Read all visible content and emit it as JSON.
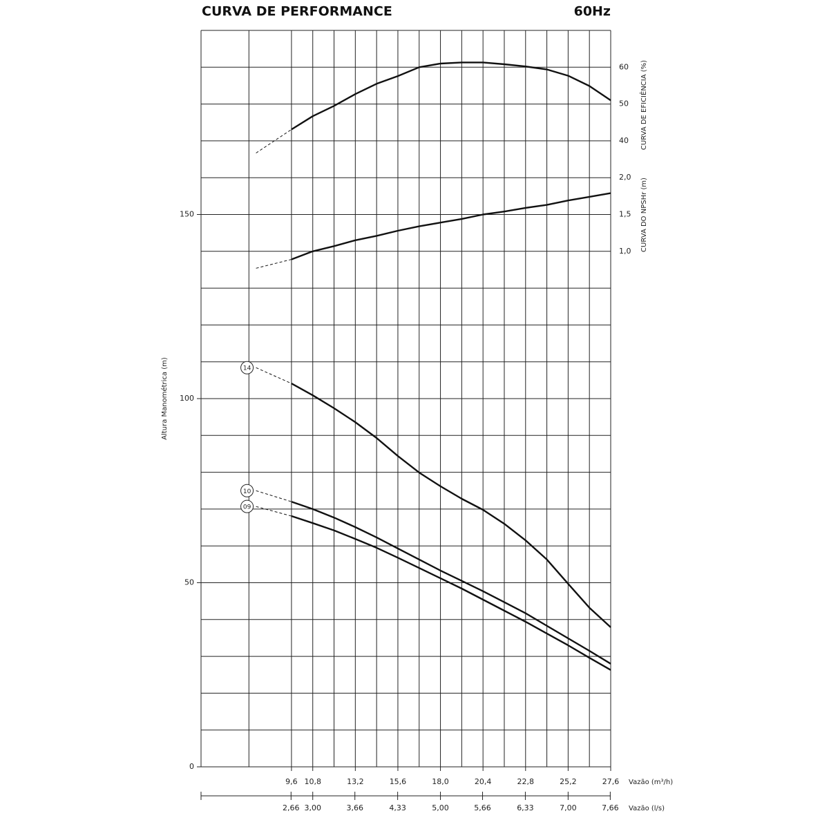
{
  "chart_data": {
    "type": "line",
    "title": "CURVA DE PERFORMANCE",
    "subtitle": "60Hz",
    "y_label": "Altura Manométrica (m)",
    "y2_label": "CURVA DE EFICIÊNCIA (%)",
    "y3_label": "CURVA DO NPSHr (m)",
    "x_label": "Vazão (m³/h)",
    "x2_label": "Vazão (l/s)",
    "xlim": [
      4.5,
      27.6
    ],
    "xticks": [
      {
        "value": 9.6,
        "label": "9,6"
      },
      {
        "value": 10.8,
        "label": "10,8"
      },
      {
        "value": 13.2,
        "label": "13,2"
      },
      {
        "value": 15.6,
        "label": "15,6"
      },
      {
        "value": 18.0,
        "label": "18,0"
      },
      {
        "value": 20.4,
        "label": "20,4"
      },
      {
        "value": 22.8,
        "label": "22,8"
      },
      {
        "value": 25.2,
        "label": "25,2"
      },
      {
        "value": 27.6,
        "label": "27,6"
      }
    ],
    "x_grid": [
      7.2,
      9.6,
      10.8,
      12.0,
      13.2,
      14.4,
      15.6,
      16.8,
      18.0,
      19.2,
      20.4,
      21.6,
      22.8,
      24.0,
      25.2,
      26.4,
      27.6
    ],
    "x2lim": [
      1.25,
      7.667
    ],
    "x2ticks": [
      {
        "value": 2.66,
        "label": "2,66"
      },
      {
        "value": 3.0,
        "label": "3,00"
      },
      {
        "value": 3.66,
        "label": "3,66"
      },
      {
        "value": 4.33,
        "label": "4,33"
      },
      {
        "value": 5.0,
        "label": "5,00"
      },
      {
        "value": 5.66,
        "label": "5,66"
      },
      {
        "value": 6.33,
        "label": "6,33"
      },
      {
        "value": 7.0,
        "label": "7,00"
      },
      {
        "value": 7.66,
        "label": "7,66"
      }
    ],
    "ylim": [
      0,
      200
    ],
    "yticks": [
      0,
      50,
      100,
      150
    ],
    "y_grid": [
      0,
      10,
      20,
      30,
      40,
      50,
      60,
      70,
      80,
      90,
      100,
      110,
      120,
      130,
      140,
      150,
      160,
      170,
      180,
      190,
      200
    ],
    "y2lim": [
      -130,
      70
    ],
    "y2ticks": [
      40,
      50,
      60
    ],
    "y3lim": [
      -6,
      4
    ],
    "y3ticks": [
      {
        "value": 1.0,
        "label": "1,0"
      },
      {
        "value": 1.5,
        "label": "1,5"
      },
      {
        "value": 2.0,
        "label": "2,0"
      }
    ],
    "dashed_segments": 1,
    "x": [
      7.6,
      9.6,
      10.8,
      12.0,
      13.2,
      14.4,
      15.6,
      16.8,
      18.0,
      19.2,
      20.4,
      21.6,
      22.8,
      24.0,
      25.2,
      26.4,
      27.6
    ],
    "series": [
      {
        "color": "#111111",
        "axis": "y2",
        "values": [
          36.7,
          43.1,
          46.7,
          49.5,
          52.7,
          55.5,
          57.6,
          60.0,
          61.0,
          61.3,
          61.3,
          60.8,
          60.2,
          59.4,
          57.7,
          54.9,
          51.0
        ]
      },
      {
        "color": "#111111",
        "axis": "y3",
        "values": [
          0.77,
          0.89,
          1.0,
          1.07,
          1.15,
          1.21,
          1.28,
          1.34,
          1.39,
          1.44,
          1.5,
          1.54,
          1.59,
          1.63,
          1.69,
          1.74,
          1.79
        ]
      },
      {
        "name": "14",
        "color": "#111111",
        "axis": "y",
        "values": [
          108.4,
          104.1,
          100.9,
          97.4,
          93.6,
          89.3,
          84.4,
          79.9,
          76.2,
          72.8,
          69.8,
          66.0,
          61.5,
          56.3,
          49.7,
          43.2,
          37.9
        ]
      },
      {
        "name": "10",
        "color": "#111111",
        "axis": "y",
        "values": [
          75.0,
          72.0,
          70.0,
          67.7,
          65.1,
          62.3,
          59.3,
          56.3,
          53.3,
          50.5,
          47.7,
          44.7,
          41.7,
          38.3,
          34.9,
          31.5,
          28.0
        ]
      },
      {
        "name": "09",
        "color": "#111111",
        "axis": "y",
        "values": [
          70.7,
          68.1,
          66.2,
          64.2,
          61.9,
          59.5,
          56.8,
          54.0,
          51.2,
          48.4,
          45.4,
          42.4,
          39.4,
          36.2,
          33.0,
          29.6,
          26.3
        ]
      }
    ]
  }
}
